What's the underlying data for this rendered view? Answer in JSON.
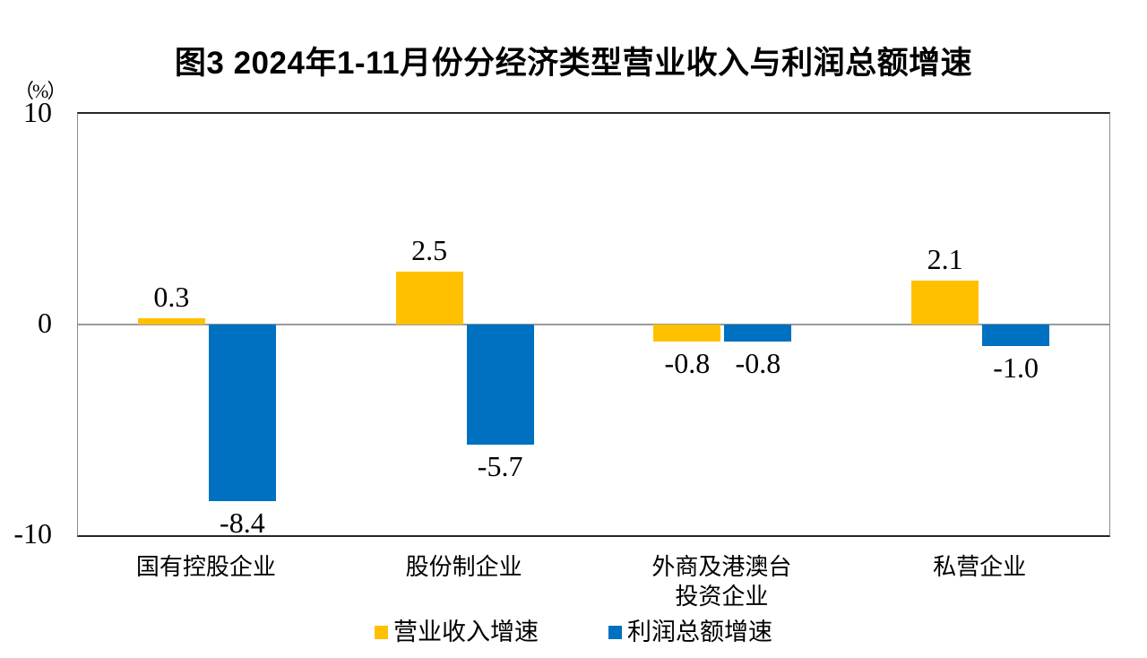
{
  "figure": {
    "title": "图3  2024年1-11月份分经济类型营业收入与利润总额增速",
    "unit_label": "（%）"
  },
  "chart_data": {
    "type": "bar",
    "title": "图3  2024年1-11月份分经济类型营业收入与利润总额增速",
    "ylabel": "（%）",
    "categories": [
      "国有控股企业",
      "股份制企业",
      "外商及港澳台\n投资企业",
      "私营企业"
    ],
    "series": [
      {
        "name": "营业收入增速",
        "color": "#FFC000",
        "values": [
          0.3,
          2.5,
          -0.8,
          2.1
        ],
        "labels": [
          "0.3",
          "2.5",
          "-0.8",
          "2.1"
        ]
      },
      {
        "name": "利润总额增速",
        "color": "#0070C0",
        "values": [
          -8.4,
          -5.7,
          -0.8,
          -1.0
        ],
        "labels": [
          "-8.4",
          "-5.7",
          "-0.8",
          "-1.0"
        ]
      }
    ],
    "ylim": [
      -10,
      10
    ],
    "yticks": [
      10,
      0,
      -10
    ],
    "ytick_labels": [
      "10",
      "0",
      "-10"
    ],
    "grid": false,
    "legend_position": "bottom",
    "zero_line": true
  }
}
